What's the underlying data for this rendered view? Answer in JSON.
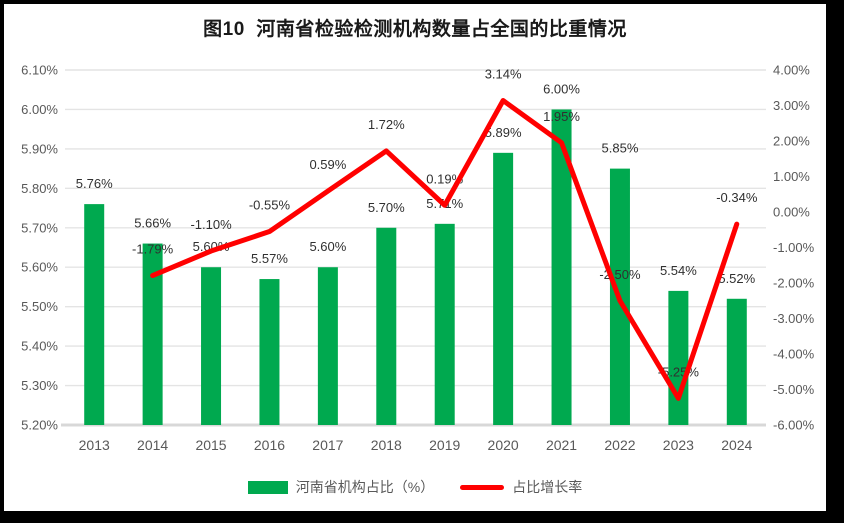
{
  "chart_data": {
    "type": "combo",
    "title": "图10  河南省检验检测机构数量占全国的比重情况",
    "categories": [
      "2013",
      "2014",
      "2015",
      "2016",
      "2017",
      "2018",
      "2019",
      "2020",
      "2021",
      "2022",
      "2023",
      "2024"
    ],
    "series": [
      {
        "name": "河南省机构占比（%）",
        "type": "bar",
        "axis": "left",
        "color": "#00A94F",
        "values": [
          5.76,
          5.66,
          5.6,
          5.57,
          5.6,
          5.7,
          5.71,
          5.89,
          6.0,
          5.85,
          5.54,
          5.52
        ],
        "labels": [
          "5.76%",
          "5.66%",
          "5.60%",
          "5.57%",
          "5.60%",
          "5.70%",
          "5.71%",
          "5.89%",
          "6.00%",
          "5.85%",
          "5.54%",
          "5.52%"
        ]
      },
      {
        "name": "占比增长率",
        "type": "line",
        "axis": "right",
        "color": "#FF0000",
        "values": [
          null,
          -1.79,
          -1.1,
          -0.55,
          0.59,
          1.72,
          0.19,
          3.14,
          1.95,
          -2.5,
          -5.25,
          -0.34
        ],
        "labels": [
          null,
          "-1.79%",
          "-1.10%",
          "-0.55%",
          "0.59%",
          "1.72%",
          "0.19%",
          "3.14%",
          "1.95%",
          "-2.50%",
          "-5.25%",
          "-0.34%"
        ]
      }
    ],
    "left_axis": {
      "min": 5.2,
      "max": 6.1,
      "ticks": [
        "6.10%",
        "6.00%",
        "5.90%",
        "5.80%",
        "5.70%",
        "5.60%",
        "5.50%",
        "5.40%",
        "5.30%",
        "5.20%"
      ]
    },
    "right_axis": {
      "min": -6.0,
      "max": 4.0,
      "ticks": [
        "4.00%",
        "3.00%",
        "2.00%",
        "1.00%",
        "0.00%",
        "-1.00%",
        "-2.00%",
        "-3.00%",
        "-4.00%",
        "-5.00%",
        "-6.00%"
      ]
    },
    "grid": true,
    "legend_position": "bottom",
    "colors": {
      "gridline": "#E4E4E4",
      "axis_line": "#D8D8D8",
      "tick_label": "#595959",
      "data_label": "#303030",
      "title": "#1a1a1a"
    }
  }
}
